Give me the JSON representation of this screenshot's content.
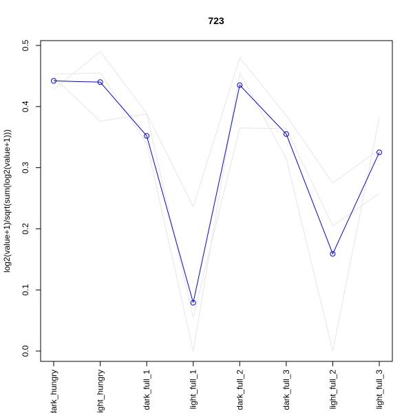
{
  "chart_data": {
    "type": "line",
    "title": "723",
    "xlabel": "",
    "ylabel": "log2(value+1)/sqrt(sum(log2(value+1)))",
    "categories": [
      "dark_hungry",
      "light_hungry",
      "dark_full_1",
      "light_full_1",
      "dark_full_2",
      "dark_full_3",
      "light_full_2",
      "light_full_3"
    ],
    "ylim": [
      0.0,
      0.5
    ],
    "yticks": [
      "0.0",
      "0.1",
      "0.2",
      "0.3",
      "0.4",
      "0.5"
    ],
    "grid": false,
    "legend": "none",
    "highlight_series": {
      "color": "#0000ff",
      "marker": "open-circle",
      "values": [
        0.442,
        0.44,
        0.352,
        0.079,
        0.435,
        0.355,
        0.159,
        0.325
      ]
    },
    "background_series_color": "#e6e6e6",
    "background_series": [
      {
        "values": [
          0.428,
          0.49,
          0.389,
          0.236,
          0.48,
          0.385,
          0.275,
          0.33
        ]
      },
      {
        "values": [
          0.453,
          0.455,
          0.34,
          0.0,
          0.455,
          0.315,
          0.0,
          0.382
        ]
      },
      {
        "values": [
          0.448,
          0.376,
          0.388,
          0.055,
          0.365,
          0.364,
          0.205,
          0.258
        ]
      }
    ]
  }
}
